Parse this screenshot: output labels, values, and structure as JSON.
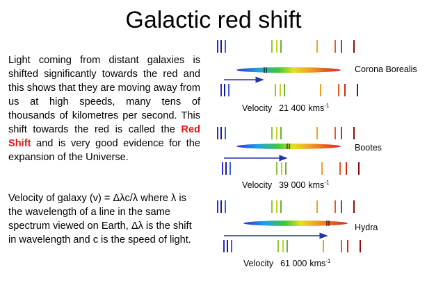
{
  "title": "Galactic red shift",
  "paragraphs": [
    {
      "before": "Light coming from distant galaxies is shifted significantly towards the red and this shows that they are moving away from us at high speeds, many tens of thousands of kilometres per second. This shift towards the red is called the ",
      "highlight": "Red Shift",
      "after": " and is very good evidence for the expansion of the Universe."
    },
    {
      "text": "Velocity of galaxy (v) = Δλc/λ where λ is the wavelength of a line in the same spectrum viewed on Earth, Δλ is the shift in wavelength and c is the speed of light."
    }
  ],
  "panels": [
    {
      "name": "Corona Borealis",
      "label": "Velocity",
      "value": "21 400",
      "unit": "kms",
      "unit_exp": "-1"
    },
    {
      "name": "Bootes",
      "label": "Velocity",
      "value": "39 000",
      "unit": "kms",
      "unit_exp": "-1"
    },
    {
      "name": "Hydra",
      "label": "Velocity",
      "value": "61 000",
      "unit": "kms",
      "unit_exp": "-1"
    }
  ]
}
